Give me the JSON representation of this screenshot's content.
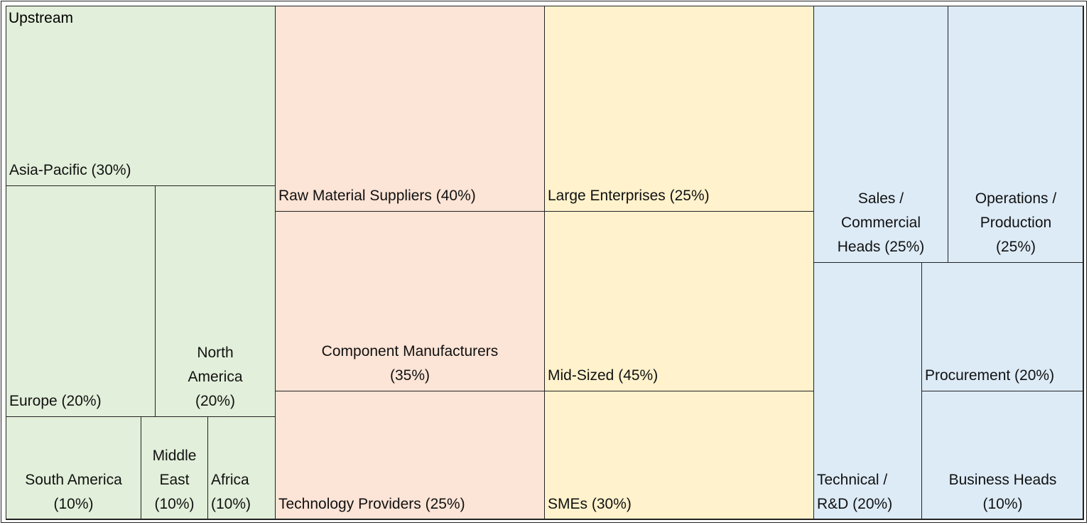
{
  "upstream": {
    "title": "Upstream",
    "cells": [
      "Asia-Pacific (30%)",
      "Europe (20%)",
      "North America (20%)",
      "South America (10%)",
      "Middle East (10%)",
      "Africa (10%)"
    ]
  },
  "suppliers": {
    "cells": [
      "Raw Material Suppliers (40%)",
      "Component Manufacturers (35%)",
      "Technology Providers (25%)"
    ]
  },
  "enterprises": {
    "cells": [
      "Large Enterprises (25%)",
      "Mid-Sized (45%)",
      "SMEs (30%)"
    ]
  },
  "functions": {
    "cells": [
      "Sales / Commercial Heads (25%)",
      "Operations / Production (25%)",
      "Technical / R&D (20%)",
      "Procurement (20%)",
      "Business Heads (10%)"
    ]
  }
}
